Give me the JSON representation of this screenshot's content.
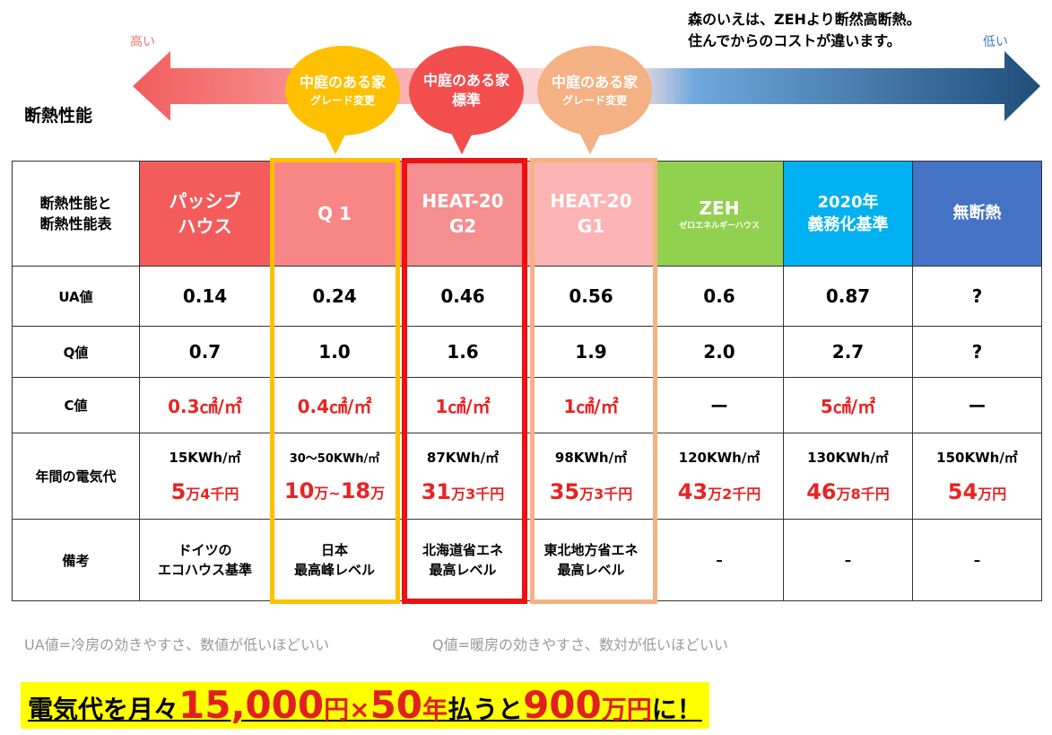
{
  "top": {
    "high_label": "高い",
    "low_label": "低い",
    "tagline_line1": "森のいえは、ZEHより断然高断熱。",
    "tagline_line2": "住んでからのコストが違います。",
    "performance_label": "断熱性能"
  },
  "bubbles": [
    {
      "line1": "中庭のある家",
      "line2": "グレード変更",
      "color": "#ffc000"
    },
    {
      "line1": "中庭のある家",
      "line2": "標準",
      "color": "#f24e4e"
    },
    {
      "line1": "中庭のある家",
      "line2": "グレード変更",
      "color": "#f4b183"
    }
  ],
  "table": {
    "corner_line1": "断熱性能と",
    "corner_line2": "断熱性能表",
    "columns": [
      {
        "line1": "パッシブ",
        "line2": "ハウス",
        "color": "#f45c5c"
      },
      {
        "line1": "Q 1",
        "line2": "",
        "color": "#f98686"
      },
      {
        "line1": "HEAT-20",
        "line2": "G2",
        "color": "#f58e8e"
      },
      {
        "line1": "HEAT-20",
        "line2": "G1",
        "color": "#fcb3b3"
      },
      {
        "line1": "ZEH",
        "line2": "ゼロエネルギーハウス",
        "color": "#92d050"
      },
      {
        "line1": "2020年",
        "line2": "義務化基準",
        "color": "#00b0f0"
      },
      {
        "line1": "無断熱",
        "line2": "",
        "color": "#4472c4"
      }
    ],
    "rows": {
      "ua": {
        "label": "UA値",
        "values": [
          "0.14",
          "0.24",
          "0.46",
          "0.56",
          "0.6",
          "0.87",
          "?"
        ]
      },
      "q": {
        "label": "Q値",
        "values": [
          "0.7",
          "1.0",
          "1.6",
          "1.9",
          "2.0",
          "2.7",
          "?"
        ]
      },
      "c": {
        "label": "C値",
        "values": [
          "0.3㎠/㎡",
          "0.4㎠/㎡",
          "1㎠/㎡",
          "1㎠/㎡",
          "ー",
          "5㎠/㎡",
          "ー"
        ]
      },
      "power": {
        "label": "年間の電気代",
        "kwh": [
          "15KWh/㎡",
          "30～50KWh/㎡",
          "87KWh/㎡",
          "98KWh/㎡",
          "120KWh/㎡",
          "130KWh/㎡",
          "150KWh/㎡"
        ],
        "cost_main": [
          "5",
          "10",
          "31",
          "35",
          "43",
          "46",
          "54"
        ],
        "cost_unit": [
          "万4千円",
          "万~",
          "万3千円",
          "万3千円",
          "万2千円",
          "万8千円",
          "万円"
        ],
        "cost_extra": [
          "",
          "18",
          "",
          "",
          "",
          "",
          ""
        ],
        "cost_extra_unit": [
          "",
          "万",
          "",
          "",
          "",
          "",
          ""
        ]
      },
      "remarks": {
        "label": "備考",
        "line1": [
          "ドイツの",
          "日本",
          "北海道省エネ",
          "東北地方省エネ",
          "–",
          "–",
          "–"
        ],
        "line2": [
          "エコハウス基準",
          "最高峰レベル",
          "最高レベル",
          "最高レベル",
          "",
          "",
          ""
        ]
      }
    }
  },
  "notes": {
    "ua_note": "UA値=冷房の効きやすさ、数値が低いほどいい",
    "q_note": "Q値=暖房の効きやすさ、数対が低いほどいい"
  },
  "banner": {
    "part1": "電気代を月々",
    "amount": "15,000",
    "yen": "円",
    "times": "×",
    "years": "50",
    "year_unit": "年",
    "part2": "払うと",
    "total": "900",
    "total_unit": "万円",
    "part3": "に！"
  }
}
